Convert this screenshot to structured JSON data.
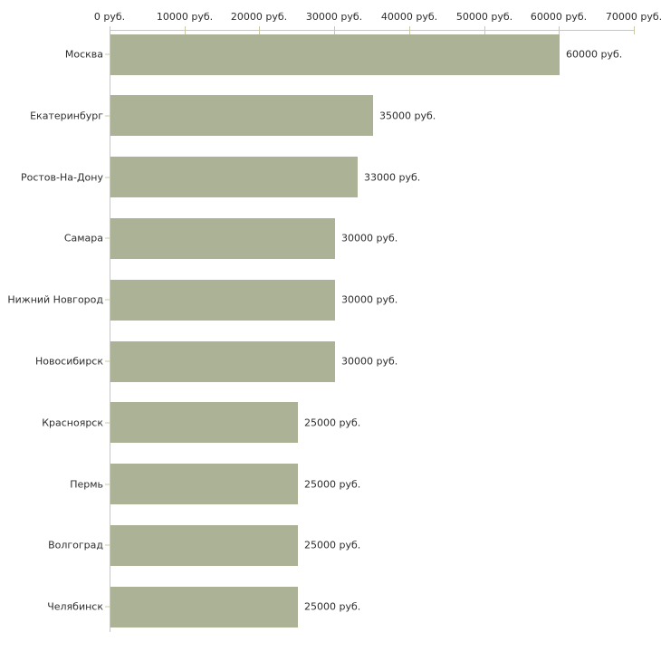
{
  "chart_data": {
    "type": "bar",
    "orientation": "horizontal",
    "title": "",
    "categories": [
      "Москва",
      "Екатеринбург",
      "Ростов-На-Дону",
      "Самара",
      "Нижний Новгород",
      "Новосибирск",
      "Красноярск",
      "Пермь",
      "Волгоград",
      "Челябинск"
    ],
    "values": [
      60000,
      35000,
      33000,
      30000,
      30000,
      30000,
      25000,
      25000,
      25000,
      25000
    ],
    "bar_value_labels": [
      "60000 руб.",
      "35000 руб.",
      "33000 руб.",
      "30000 руб.",
      "30000 руб.",
      "30000 руб.",
      "25000 руб.",
      "25000 руб.",
      "25000 руб.",
      "25000 руб."
    ],
    "x_axis": {
      "position": "top",
      "xlim": [
        0,
        70000
      ],
      "ticks": [
        0,
        10000,
        20000,
        30000,
        40000,
        50000,
        60000,
        70000
      ],
      "tick_labels": [
        "0 руб.",
        "10000 руб.",
        "20000 руб.",
        "30000 руб.",
        "40000 руб.",
        "50000 руб.",
        "60000 руб.",
        "70000 руб."
      ]
    },
    "grid": false,
    "legend": false,
    "colors": {
      "bar": "#acb296",
      "axis_line": "#c6c6c6",
      "tick_mark": "#c9c9a3",
      "text": "#2d2d2d",
      "background": "#ffffff"
    }
  }
}
